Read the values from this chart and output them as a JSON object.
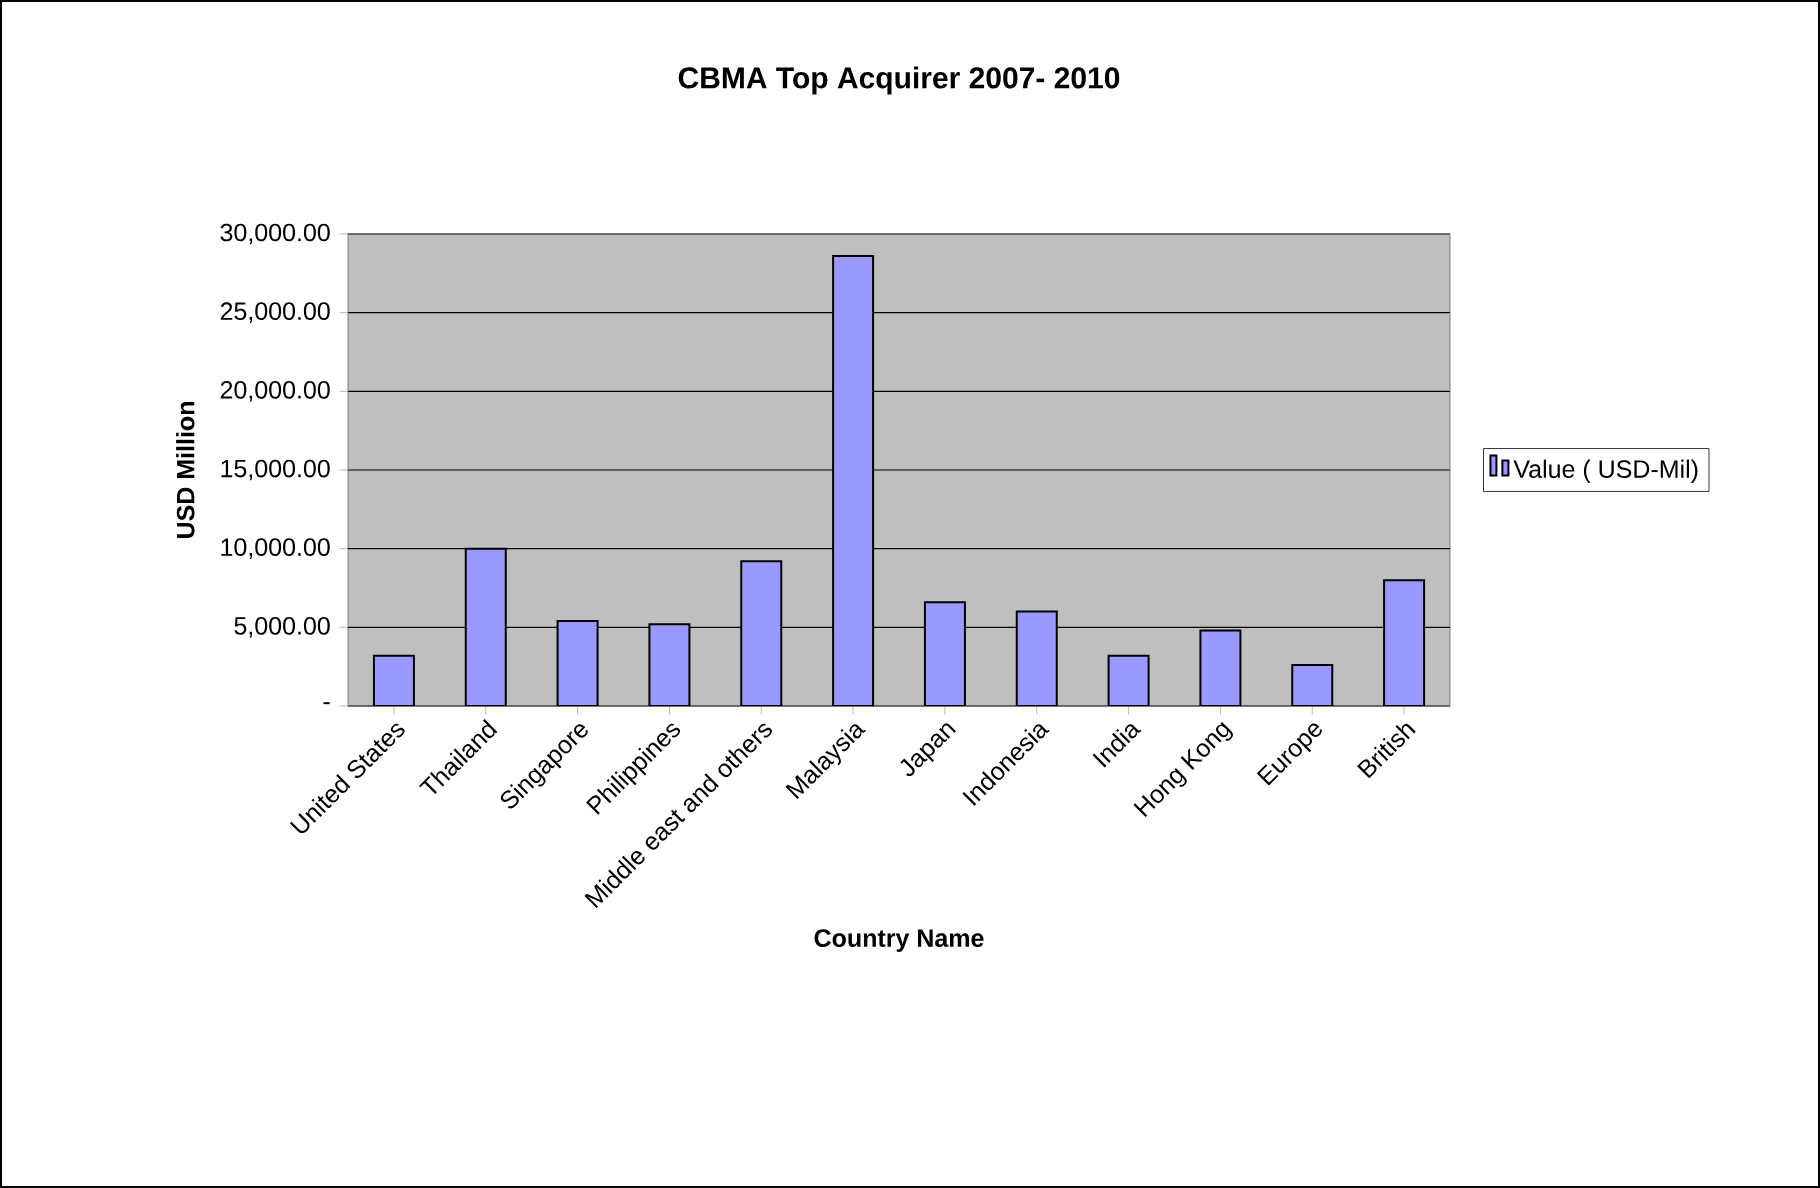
{
  "chart_data": {
    "type": "bar",
    "title": "CBMA Top Acquirer 2007- 2010",
    "xlabel": "Country Name",
    "ylabel": "USD Million",
    "categories": [
      "United States",
      "Thailand",
      "Singapore",
      "Philippines",
      "Middle east and others",
      "Malaysia",
      "Japan",
      "Indonesia",
      "India",
      "Hong Kong",
      "Europe",
      "British"
    ],
    "series": [
      {
        "name": "Value ( USD-Mil)",
        "color": "#9999ff",
        "values": [
          3200,
          10000,
          5400,
          5200,
          9200,
          28600,
          6600,
          6000,
          3200,
          4800,
          2600,
          8000
        ]
      }
    ],
    "ylim": [
      0,
      30000
    ],
    "yticks": [
      {
        "value": 0,
        "label": "-"
      },
      {
        "value": 5000,
        "label": "5,000.00"
      },
      {
        "value": 10000,
        "label": "10,000.00"
      },
      {
        "value": 15000,
        "label": "15,000.00"
      },
      {
        "value": 20000,
        "label": "20,000.00"
      },
      {
        "value": 25000,
        "label": "25,000.00"
      },
      {
        "value": 30000,
        "label": "30,000.00"
      }
    ],
    "grid": "y",
    "legend": "right"
  }
}
